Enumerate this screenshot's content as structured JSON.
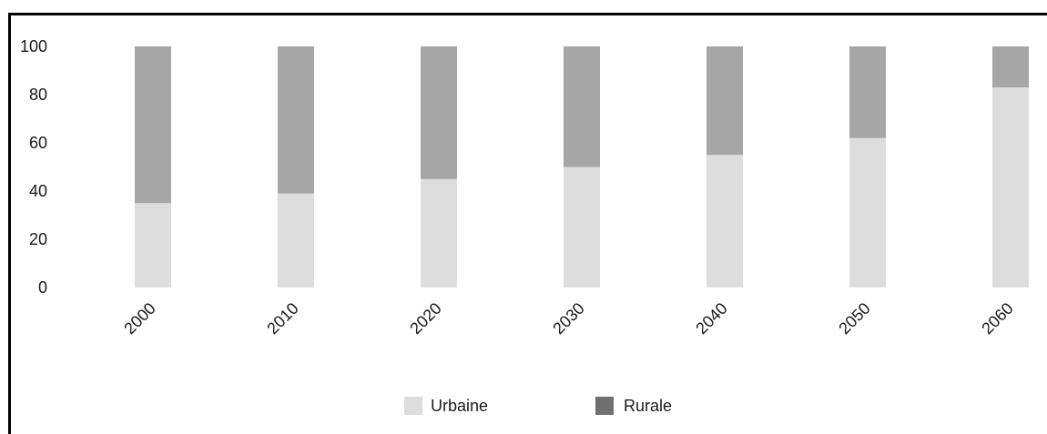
{
  "chart_data": {
    "type": "bar",
    "stacked": true,
    "categories": [
      "2000",
      "2010",
      "2020",
      "2030",
      "2040",
      "2050",
      "2060"
    ],
    "series": [
      {
        "name": "Urbaine",
        "values": [
          35,
          39,
          45,
          50,
          55,
          62,
          83
        ],
        "color": "#dddddd"
      },
      {
        "name": "Rurale",
        "values": [
          65,
          61,
          55,
          50,
          45,
          38,
          17
        ],
        "color": "#a6a6a6"
      }
    ],
    "legend_swatch_colors": [
      "#dddddd",
      "#6f6f6f"
    ],
    "ylim": [
      0,
      100
    ],
    "yticks": [
      "0",
      "20",
      "40",
      "60",
      "80",
      "100"
    ],
    "grid": false,
    "legend_position": "bottom-center",
    "title": "",
    "xlabel": "",
    "ylabel": ""
  }
}
